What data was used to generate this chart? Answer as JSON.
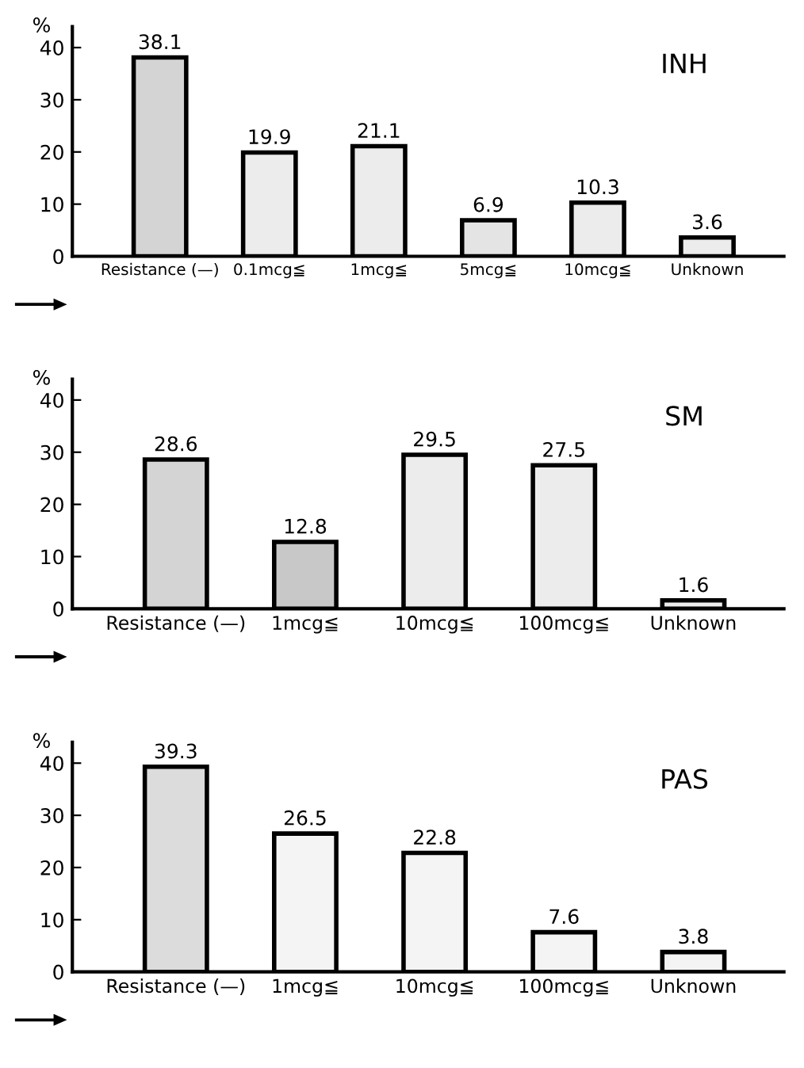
{
  "chart_data": [
    {
      "type": "bar",
      "title": "INH",
      "ylabel": "%",
      "categories": [
        "Resistance (—)",
        "0.1mcg≦",
        "1mcg≦",
        "5mcg≦",
        "10mcg≦",
        "Unknown"
      ],
      "values": [
        38.1,
        19.9,
        21.1,
        6.9,
        10.3,
        3.6
      ],
      "colors": [
        "#d4d4d4",
        "#ececec",
        "#ececec",
        "#e4e4e4",
        "#ececec",
        "#ececec"
      ],
      "ylim": [
        0,
        44
      ],
      "yticks": [
        0,
        10,
        20,
        30,
        40
      ],
      "data_labels": true,
      "grid": false,
      "legend": false
    },
    {
      "type": "bar",
      "title": "SM",
      "ylabel": "%",
      "categories": [
        "Resistance (—)",
        "1mcg≦",
        "10mcg≦",
        "100mcg≦",
        "Unknown"
      ],
      "values": [
        28.6,
        12.8,
        29.5,
        27.5,
        1.6
      ],
      "colors": [
        "#d4d4d4",
        "#c8c8c8",
        "#ececec",
        "#ececec",
        "#ececec"
      ],
      "ylim": [
        0,
        44
      ],
      "yticks": [
        0,
        10,
        20,
        30,
        40
      ],
      "data_labels": true,
      "grid": false,
      "legend": false
    },
    {
      "type": "bar",
      "title": "PAS",
      "ylabel": "%",
      "categories": [
        "Resistance (—)",
        "1mcg≦",
        "10mcg≦",
        "100mcg≦",
        "Unknown"
      ],
      "values": [
        39.3,
        26.5,
        22.8,
        7.6,
        3.8
      ],
      "colors": [
        "#dcdcdc",
        "#f4f4f4",
        "#f4f4f4",
        "#f4f4f4",
        "#f4f4f4"
      ],
      "ylim": [
        0,
        44
      ],
      "yticks": [
        0,
        10,
        20,
        30,
        40
      ],
      "data_labels": true,
      "grid": false,
      "legend": false
    }
  ]
}
